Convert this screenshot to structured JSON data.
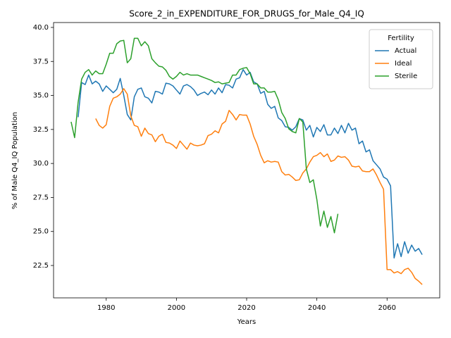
{
  "chart_data": {
    "type": "line",
    "title": "Score_2_in_EXPENDITURE_FOR_DRUGS_for_Male_Q4_IQ",
    "xlabel": "Years",
    "ylabel": "% of Male Q4_IQ Population",
    "legend_title": "Fertility",
    "legend_loc": "upper right",
    "grid": false,
    "x": [
      1970,
      1971,
      1972,
      1973,
      1974,
      1975,
      1976,
      1977,
      1978,
      1979,
      1980,
      1981,
      1982,
      1983,
      1984,
      1985,
      1986,
      1987,
      1988,
      1989,
      1990,
      1991,
      1992,
      1993,
      1994,
      1995,
      1996,
      1997,
      1998,
      1999,
      2000,
      2001,
      2002,
      2003,
      2004,
      2005,
      2006,
      2007,
      2008,
      2009,
      2010,
      2011,
      2012,
      2013,
      2014,
      2015,
      2016,
      2017,
      2018,
      2019,
      2020,
      2021,
      2022,
      2023,
      2024,
      2025,
      2026,
      2027,
      2028,
      2029,
      2030,
      2031,
      2032,
      2033,
      2034,
      2035,
      2036,
      2037,
      2038,
      2039,
      2040,
      2041,
      2042,
      2043,
      2044,
      2045,
      2046,
      2047,
      2048,
      2049,
      2050,
      2051,
      2052,
      2053,
      2054,
      2055,
      2056,
      2057,
      2058,
      2059,
      2060,
      2061,
      2062,
      2063,
      2064,
      2065,
      2066,
      2067,
      2068,
      2069,
      2070
    ],
    "series": [
      {
        "name": "Actual",
        "color": "#1f77b4",
        "values": [
          null,
          null,
          33.4,
          35.95,
          35.8,
          36.5,
          35.85,
          36.05,
          35.85,
          35.3,
          35.7,
          35.45,
          35.2,
          35.45,
          36.25,
          35.0,
          33.6,
          33.2,
          34.9,
          35.45,
          35.55,
          34.9,
          34.8,
          34.45,
          35.3,
          35.25,
          35.1,
          35.9,
          35.85,
          35.7,
          35.4,
          35.1,
          35.7,
          35.8,
          35.65,
          35.4,
          35.0,
          35.15,
          35.25,
          35.05,
          35.4,
          35.1,
          35.55,
          35.2,
          35.8,
          35.75,
          35.55,
          36.2,
          36.3,
          36.9,
          36.5,
          36.7,
          36.0,
          35.85,
          35.15,
          35.3,
          34.35,
          34.05,
          34.2,
          33.35,
          33.15,
          32.7,
          32.65,
          32.45,
          32.7,
          33.3,
          33.2,
          32.45,
          32.8,
          31.95,
          32.65,
          32.35,
          32.85,
          32.1,
          32.1,
          32.6,
          32.2,
          32.8,
          32.25,
          32.95,
          32.45,
          32.6,
          31.45,
          31.65,
          30.85,
          31.0,
          30.2,
          29.9,
          29.6,
          29.0,
          28.85,
          28.35,
          23.05,
          24.1,
          23.15,
          24.25,
          23.4,
          24.0,
          23.55,
          23.75,
          23.3
        ]
      },
      {
        "name": "Ideal",
        "color": "#ff7f0e",
        "values": [
          null,
          null,
          null,
          null,
          null,
          null,
          null,
          33.3,
          32.8,
          32.6,
          32.85,
          34.2,
          34.8,
          34.9,
          35.1,
          35.5,
          35.1,
          33.5,
          32.8,
          32.7,
          32.0,
          32.6,
          32.2,
          32.1,
          31.6,
          32.0,
          32.15,
          31.55,
          31.5,
          31.35,
          31.1,
          31.65,
          31.35,
          31.05,
          31.5,
          31.35,
          31.3,
          31.35,
          31.45,
          32.05,
          32.15,
          32.4,
          32.25,
          32.9,
          33.1,
          33.9,
          33.6,
          33.2,
          33.6,
          33.55,
          33.55,
          32.9,
          32.0,
          31.4,
          30.6,
          30.05,
          30.2,
          30.1,
          30.15,
          30.1,
          29.4,
          29.15,
          29.2,
          29.0,
          28.75,
          28.8,
          29.3,
          29.6,
          30.1,
          30.5,
          30.6,
          30.8,
          30.5,
          30.7,
          30.15,
          30.25,
          30.55,
          30.45,
          30.5,
          30.25,
          29.8,
          29.75,
          29.8,
          29.45,
          29.4,
          29.4,
          29.6,
          29.15,
          28.6,
          28.1,
          22.2,
          22.2,
          21.95,
          22.05,
          21.9,
          22.2,
          22.3,
          22.0,
          21.55,
          21.35,
          21.1
        ]
      },
      {
        "name": "Sterile",
        "color": "#2ca02c",
        "values": [
          33.06,
          31.9,
          34.5,
          36.2,
          36.7,
          36.9,
          36.5,
          36.8,
          36.6,
          36.6,
          37.3,
          38.1,
          38.1,
          38.8,
          39.0,
          39.05,
          37.4,
          37.7,
          39.2,
          39.2,
          38.65,
          38.95,
          38.65,
          37.7,
          37.4,
          37.15,
          37.1,
          36.85,
          36.4,
          36.2,
          36.4,
          36.7,
          36.5,
          36.6,
          36.5,
          36.5,
          36.5,
          36.4,
          36.3,
          36.2,
          36.1,
          35.95,
          36.0,
          35.85,
          35.9,
          35.95,
          36.5,
          36.5,
          36.9,
          37.0,
          37.05,
          36.6,
          35.85,
          35.85,
          35.55,
          35.55,
          35.25,
          35.25,
          35.3,
          34.7,
          33.75,
          33.3,
          32.55,
          32.35,
          32.25,
          33.3,
          33.05,
          29.6,
          28.6,
          28.8,
          27.35,
          25.4,
          26.5,
          25.3,
          26.1,
          24.9,
          26.3,
          null,
          null,
          null,
          null,
          null,
          null,
          null,
          null,
          null,
          null,
          null,
          null,
          null,
          null,
          null,
          null,
          null,
          null,
          null,
          null,
          null,
          null,
          null,
          null
        ]
      }
    ],
    "xlim": [
      1965,
      2075
    ],
    "xticks": [
      1980,
      2000,
      2020,
      2040,
      2060
    ],
    "ylim": [
      20.12,
      40.36
    ],
    "yticks": [
      22.5,
      {
        "value": 25,
        "label": "25.0"
      },
      27.5,
      {
        "value": 30,
        "label": "30.0"
      },
      32.5,
      {
        "value": 35,
        "label": "35.0"
      },
      37.5,
      {
        "value": 40,
        "label": "40.0"
      }
    ]
  }
}
